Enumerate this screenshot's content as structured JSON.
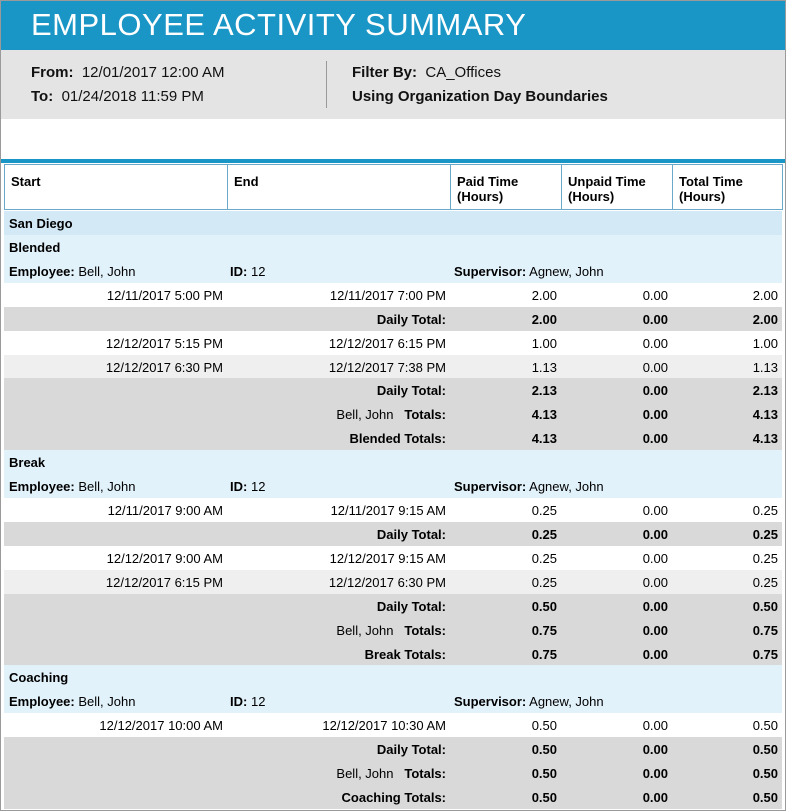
{
  "header": {
    "title": "EMPLOYEE ACTIVITY SUMMARY"
  },
  "info": {
    "from_label": "From:",
    "from": "12/01/2017 12:00 AM",
    "to_label": "To:",
    "to": "01/24/2018 11:59 PM",
    "filter_label": "Filter By:",
    "filter": "CA_Offices",
    "boundaries": "Using Organization Day Boundaries"
  },
  "table": {
    "columns": [
      [
        "Start"
      ],
      [
        "End"
      ],
      [
        "Paid Time",
        "(Hours)"
      ],
      [
        "Unpaid Time",
        "(Hours)"
      ],
      [
        "Total Time",
        "(Hours)"
      ]
    ],
    "rows": [
      {
        "location": "San Diego"
      },
      {
        "activity": "Blended"
      },
      {
        "employee_label": "Employee:",
        "employee": "Bell, John",
        "id_label": "ID:",
        "id": "12",
        "supervisor_label": "Supervisor:",
        "supervisor": "Agnew, John"
      },
      {
        "start": "12/11/2017 5:00 PM",
        "end": "12/11/2017 7:00 PM",
        "paid": "2.00",
        "unpaid": "0.00",
        "total": "2.00"
      },
      {
        "label": "Daily Total:",
        "paid": "2.00",
        "unpaid": "0.00",
        "total": "2.00"
      },
      {
        "start": "12/12/2017 5:15 PM",
        "end": "12/12/2017 6:15 PM",
        "paid": "1.00",
        "unpaid": "0.00",
        "total": "1.00"
      },
      {
        "start": "12/12/2017 6:30 PM",
        "end": "12/12/2017 7:38 PM",
        "paid": "1.13",
        "unpaid": "0.00",
        "total": "1.13"
      },
      {
        "label": "Daily Total:",
        "paid": "2.13",
        "unpaid": "0.00",
        "total": "2.13"
      },
      {
        "name": "Bell, John",
        "label": "Totals:",
        "paid": "4.13",
        "unpaid": "0.00",
        "total": "4.13"
      },
      {
        "label": "Blended Totals:",
        "paid": "4.13",
        "unpaid": "0.00",
        "total": "4.13"
      },
      {
        "activity": "Break"
      },
      {
        "employee_label": "Employee:",
        "employee": "Bell, John",
        "id_label": "ID:",
        "id": "12",
        "supervisor_label": "Supervisor:",
        "supervisor": "Agnew, John"
      },
      {
        "start": "12/11/2017 9:00 AM",
        "end": "12/11/2017 9:15 AM",
        "paid": "0.25",
        "unpaid": "0.00",
        "total": "0.25"
      },
      {
        "label": "Daily Total:",
        "paid": "0.25",
        "unpaid": "0.00",
        "total": "0.25"
      },
      {
        "start": "12/12/2017 9:00 AM",
        "end": "12/12/2017 9:15 AM",
        "paid": "0.25",
        "unpaid": "0.00",
        "total": "0.25"
      },
      {
        "start": "12/12/2017 6:15 PM",
        "end": "12/12/2017 6:30 PM",
        "paid": "0.25",
        "unpaid": "0.00",
        "total": "0.25"
      },
      {
        "label": "Daily Total:",
        "paid": "0.50",
        "unpaid": "0.00",
        "total": "0.50"
      },
      {
        "name": "Bell, John",
        "label": "Totals:",
        "paid": "0.75",
        "unpaid": "0.00",
        "total": "0.75"
      },
      {
        "label": "Break Totals:",
        "paid": "0.75",
        "unpaid": "0.00",
        "total": "0.75"
      },
      {
        "activity": "Coaching"
      },
      {
        "employee_label": "Employee:",
        "employee": "Bell, John",
        "id_label": "ID:",
        "id": "12",
        "supervisor_label": "Supervisor:",
        "supervisor": "Agnew, John"
      },
      {
        "start": "12/12/2017 10:00 AM",
        "end": "12/12/2017 10:30 AM",
        "paid": "0.50",
        "unpaid": "0.00",
        "total": "0.50"
      },
      {
        "label": "Daily Total:",
        "paid": "0.50",
        "unpaid": "0.00",
        "total": "0.50"
      },
      {
        "name": "Bell, John",
        "label": "Totals:",
        "paid": "0.50",
        "unpaid": "0.00",
        "total": "0.50"
      },
      {
        "label": "Coaching Totals:",
        "paid": "0.50",
        "unpaid": "0.00",
        "total": "0.50"
      }
    ]
  }
}
